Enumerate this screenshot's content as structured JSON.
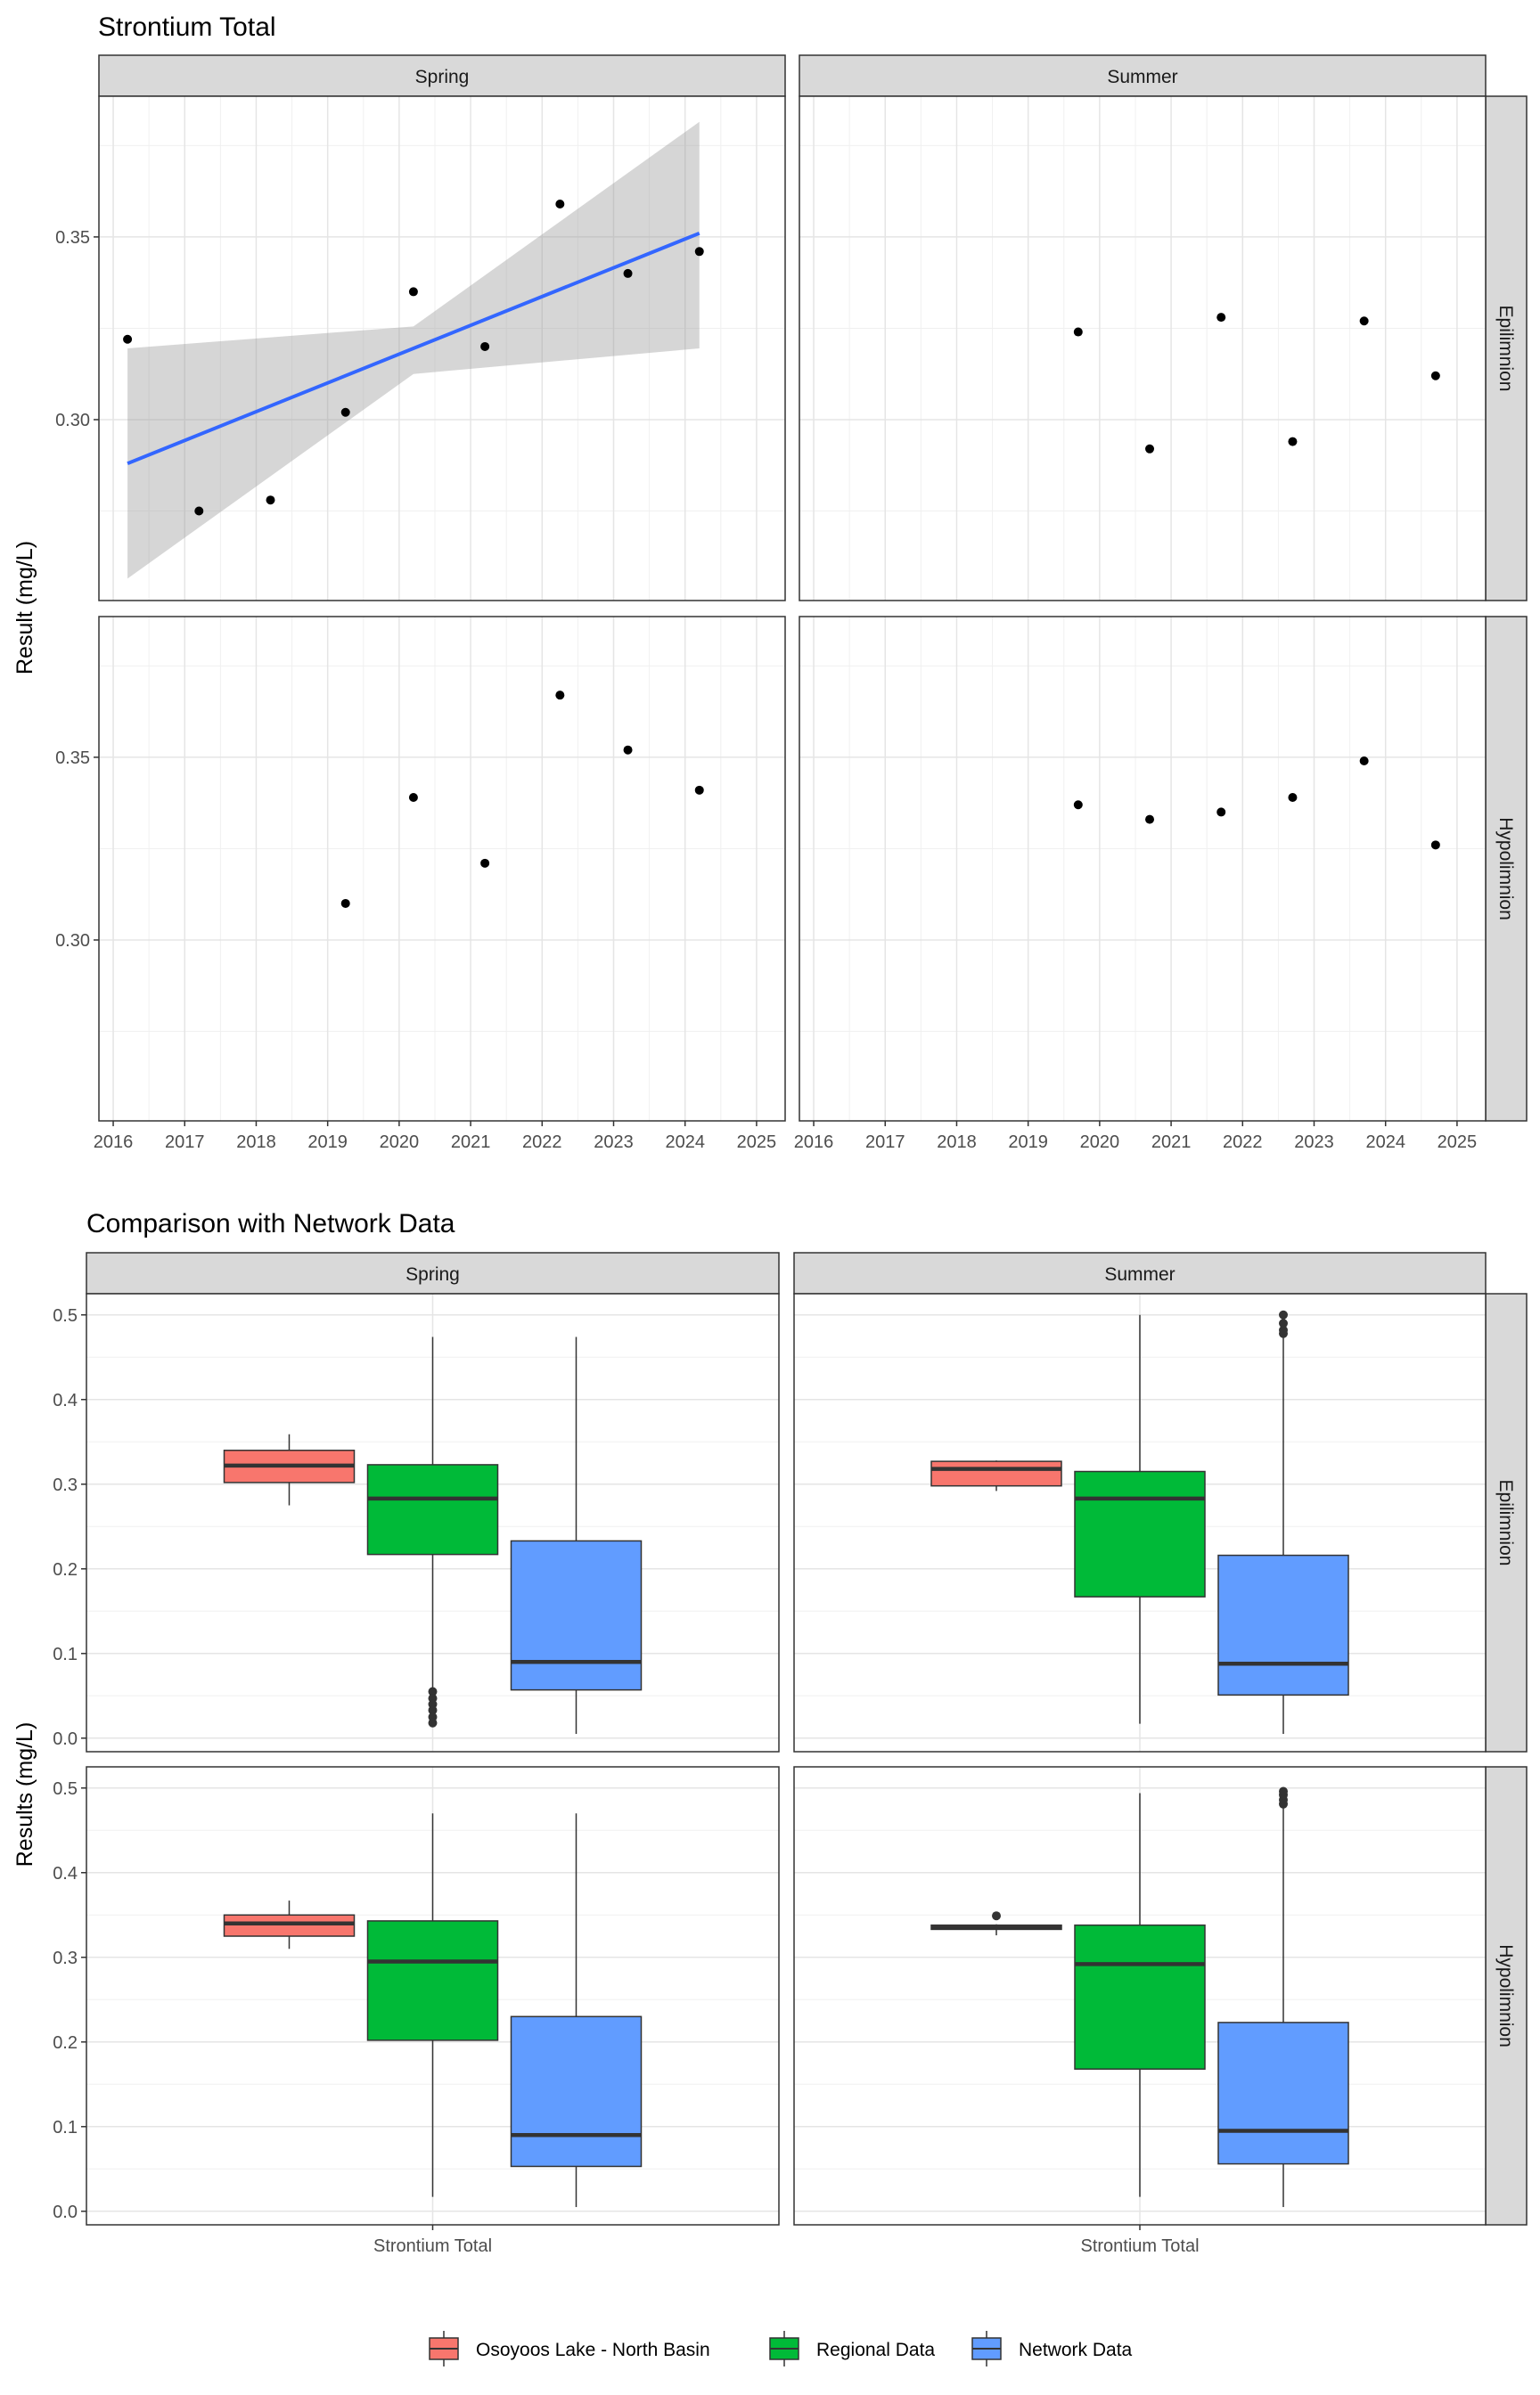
{
  "chart_data": [
    {
      "type": "scatter",
      "title": "Strontium Total",
      "xlabel": "",
      "ylabel": "Result (mg/L)",
      "xlim": [
        2015.8,
        2025.4
      ],
      "ylim": [
        0.2505,
        0.3885
      ],
      "x_ticks": [
        "2016",
        "2017",
        "2018",
        "2019",
        "2020",
        "2021",
        "2022",
        "2023",
        "2024",
        "2025"
      ],
      "x_tick_values": [
        2016,
        2017,
        2018,
        2019,
        2020,
        2021,
        2022,
        2023,
        2024,
        2025
      ],
      "y_ticks": [
        "0.30",
        "0.35"
      ],
      "y_tick_values": [
        0.3,
        0.35
      ],
      "grid": true,
      "column_facets": [
        "Spring",
        "Summer"
      ],
      "row_facets": [
        "Epilimnion",
        "Hypolimnion"
      ],
      "panels": [
        {
          "col": 0,
          "row": 0,
          "points": [
            [
              2016.2,
              0.322
            ],
            [
              2017.2,
              0.275
            ],
            [
              2018.2,
              0.278
            ],
            [
              2019.25,
              0.302
            ],
            [
              2020.2,
              0.335
            ],
            [
              2021.2,
              0.32
            ],
            [
              2022.25,
              0.359
            ],
            [
              2023.2,
              0.34
            ],
            [
              2024.2,
              0.346
            ]
          ],
          "trend": {
            "x": [
              2016.2,
              2024.2
            ],
            "y": [
              0.288,
              0.351
            ]
          },
          "band": {
            "x": [
              2016.2,
              2020.2,
              2024.2
            ],
            "lower": [
              0.2565,
              0.3125,
              0.3195
            ],
            "upper": [
              0.3195,
              0.3255,
              0.3815
            ]
          }
        },
        {
          "col": 1,
          "row": 0,
          "points": [
            [
              2019.7,
              0.324
            ],
            [
              2020.7,
              0.292
            ],
            [
              2021.7,
              0.328
            ],
            [
              2022.7,
              0.294
            ],
            [
              2023.7,
              0.327
            ],
            [
              2024.7,
              0.312
            ]
          ]
        },
        {
          "col": 0,
          "row": 1,
          "points": [
            [
              2019.25,
              0.31
            ],
            [
              2020.2,
              0.339
            ],
            [
              2021.2,
              0.321
            ],
            [
              2022.25,
              0.367
            ],
            [
              2023.2,
              0.352
            ],
            [
              2024.2,
              0.341
            ]
          ]
        },
        {
          "col": 1,
          "row": 1,
          "points": [
            [
              2019.7,
              0.337
            ],
            [
              2020.7,
              0.333
            ],
            [
              2021.7,
              0.335
            ],
            [
              2022.7,
              0.339
            ],
            [
              2023.7,
              0.349
            ],
            [
              2024.7,
              0.326
            ]
          ]
        }
      ]
    },
    {
      "type": "box",
      "title": "Comparison with Network Data",
      "xlabel": "",
      "ylabel": "Results (mg/L)",
      "categories": [
        "Strontium Total"
      ],
      "ylim": [
        -0.016,
        0.525
      ],
      "y_ticks": [
        "0.0",
        "0.1",
        "0.2",
        "0.3",
        "0.4",
        "0.5"
      ],
      "y_tick_values": [
        0.0,
        0.1,
        0.2,
        0.3,
        0.4,
        0.5
      ],
      "grid": true,
      "column_facets": [
        "Spring",
        "Summer"
      ],
      "row_facets": [
        "Epilimnion",
        "Hypolimnion"
      ],
      "legend_position": "bottom",
      "series": [
        {
          "name": "Osoyoos Lake - North Basin",
          "color": "#F8766D"
        },
        {
          "name": "Regional Data",
          "color": "#00BA38"
        },
        {
          "name": "Network Data",
          "color": "#619CFF"
        }
      ],
      "panels": [
        {
          "col": 0,
          "row": 0,
          "boxes": [
            {
              "series": 0,
              "min": 0.275,
              "q1": 0.302,
              "median": 0.322,
              "q3": 0.34,
              "max": 0.359,
              "outliers": []
            },
            {
              "series": 1,
              "min": 0.058,
              "q1": 0.217,
              "median": 0.283,
              "q3": 0.323,
              "max": 0.474,
              "outliers": [
                0.055,
                0.047,
                0.04,
                0.033,
                0.025,
                0.018
              ]
            },
            {
              "series": 2,
              "min": 0.005,
              "q1": 0.057,
              "median": 0.09,
              "q3": 0.233,
              "max": 0.474,
              "outliers": []
            }
          ]
        },
        {
          "col": 1,
          "row": 0,
          "boxes": [
            {
              "series": 0,
              "min": 0.292,
              "q1": 0.298,
              "median": 0.318,
              "q3": 0.327,
              "max": 0.328,
              "outliers": []
            },
            {
              "series": 1,
              "min": 0.017,
              "q1": 0.167,
              "median": 0.283,
              "q3": 0.315,
              "max": 0.5,
              "outliers": []
            },
            {
              "series": 2,
              "min": 0.005,
              "q1": 0.051,
              "median": 0.088,
              "q3": 0.216,
              "max": 0.474,
              "outliers": [
                0.478,
                0.482,
                0.49,
                0.5
              ]
            }
          ]
        },
        {
          "col": 0,
          "row": 1,
          "boxes": [
            {
              "series": 0,
              "min": 0.31,
              "q1": 0.325,
              "median": 0.34,
              "q3": 0.35,
              "max": 0.367,
              "outliers": []
            },
            {
              "series": 1,
              "min": 0.017,
              "q1": 0.202,
              "median": 0.295,
              "q3": 0.343,
              "max": 0.47,
              "outliers": []
            },
            {
              "series": 2,
              "min": 0.005,
              "q1": 0.053,
              "median": 0.09,
              "q3": 0.23,
              "max": 0.47,
              "outliers": []
            }
          ]
        },
        {
          "col": 1,
          "row": 1,
          "boxes": [
            {
              "series": 0,
              "min": 0.326,
              "q1": 0.333,
              "median": 0.335,
              "q3": 0.338,
              "max": 0.339,
              "outliers": [
                0.349
              ]
            },
            {
              "series": 1,
              "min": 0.017,
              "q1": 0.168,
              "median": 0.292,
              "q3": 0.338,
              "max": 0.494,
              "outliers": []
            },
            {
              "series": 2,
              "min": 0.005,
              "q1": 0.056,
              "median": 0.095,
              "q3": 0.223,
              "max": 0.476,
              "outliers": [
                0.481,
                0.486,
                0.492,
                0.496
              ]
            }
          ]
        }
      ]
    }
  ]
}
